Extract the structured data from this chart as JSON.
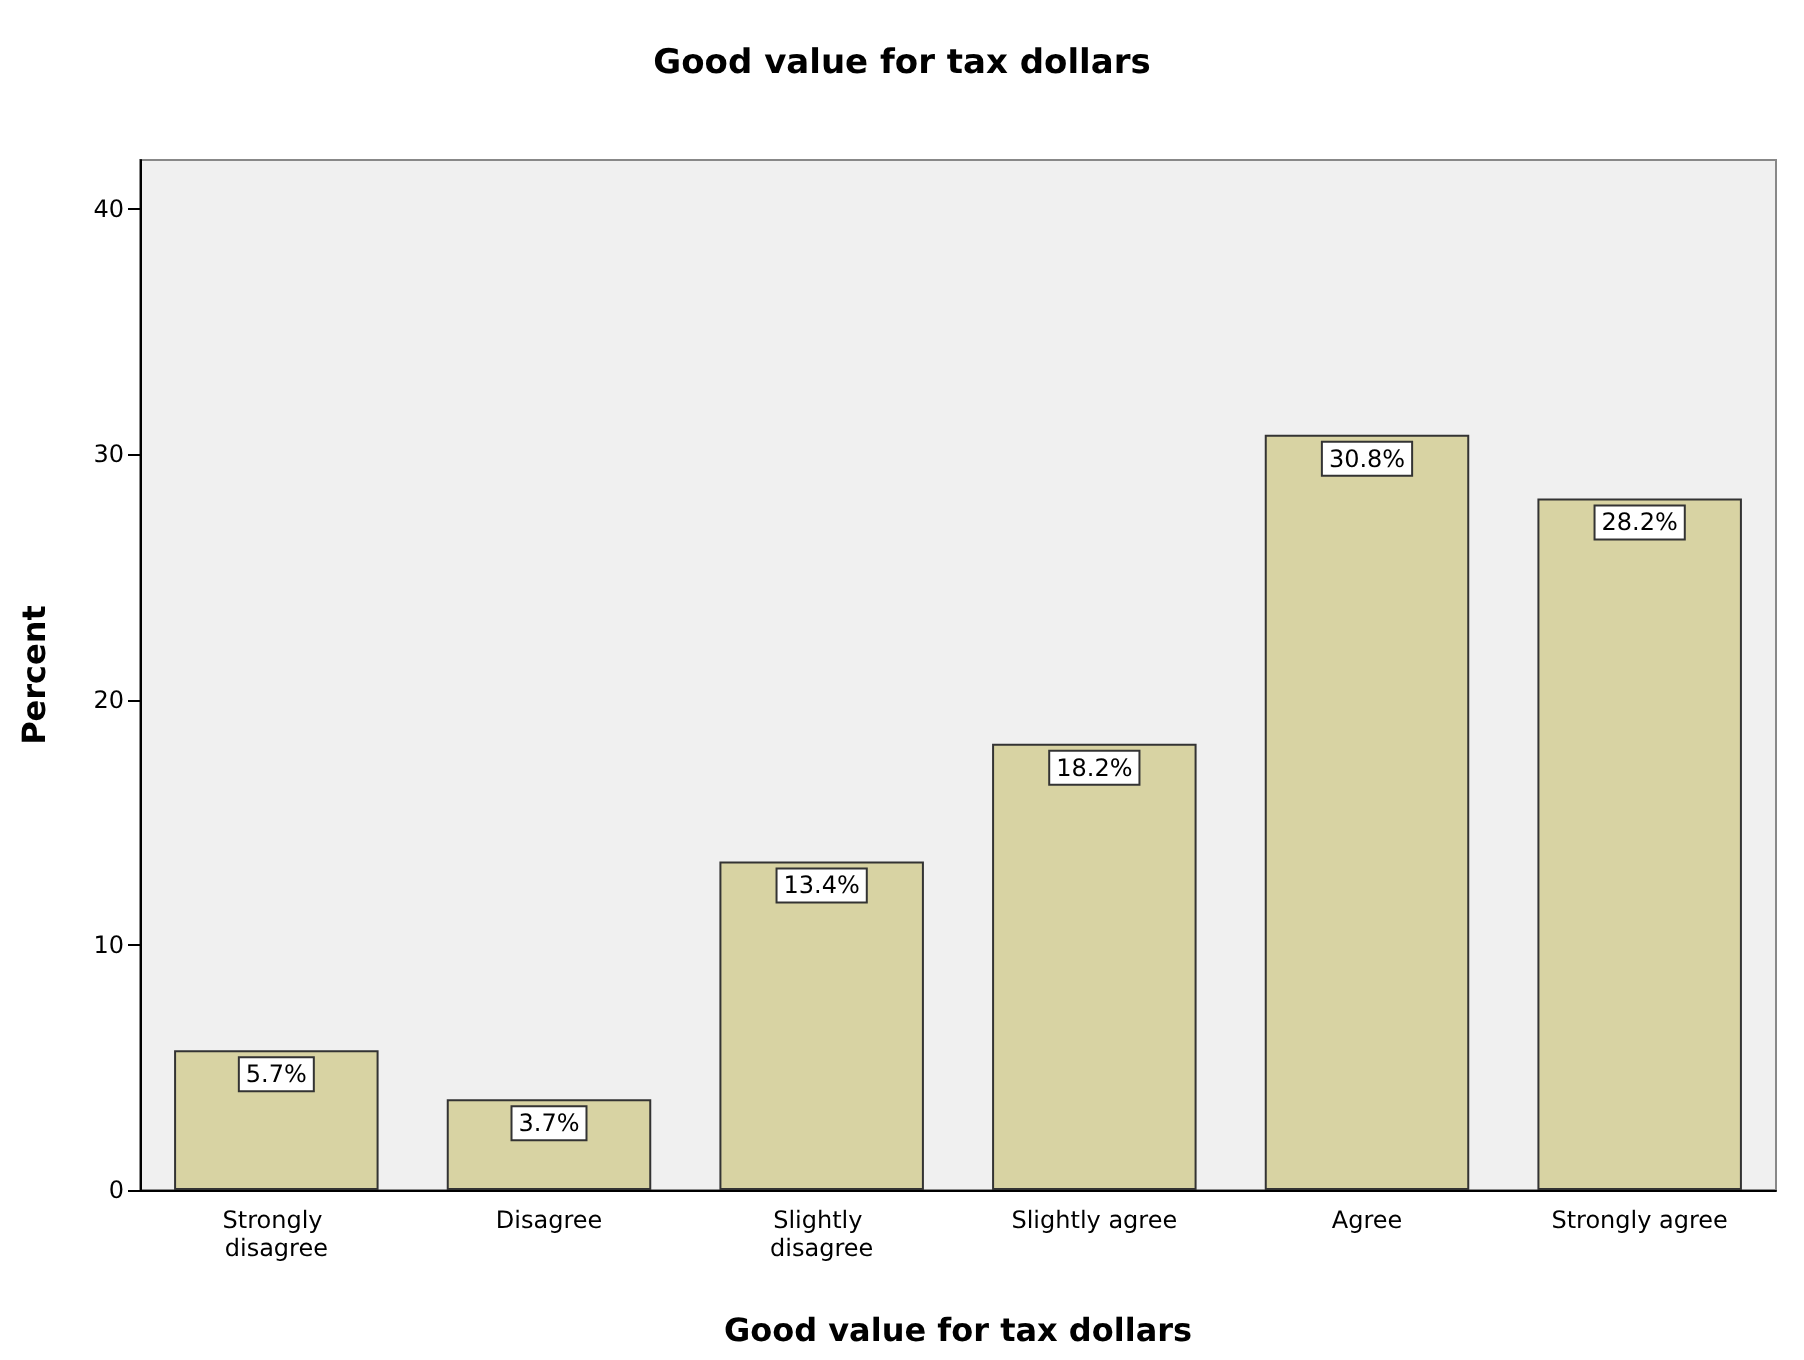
{
  "chart_data": {
    "type": "bar",
    "title": "Good value for tax dollars",
    "xlabel": "Good value for tax dollars",
    "ylabel": "Percent",
    "categories": [
      "Strongly disagree",
      "Disagree",
      "Slightly disagree",
      "Slightly agree",
      "Agree",
      "Strongly agree"
    ],
    "values": [
      5.7,
      3.7,
      13.4,
      18.2,
      30.8,
      28.2
    ],
    "value_labels": [
      "5.7%",
      "3.7%",
      "13.4%",
      "18.2%",
      "30.8%",
      "28.2%"
    ],
    "color": "#d8d3a3",
    "ylim": [
      0,
      42
    ],
    "yticks": [
      0,
      10,
      20,
      30,
      40
    ],
    "grid": false
  }
}
